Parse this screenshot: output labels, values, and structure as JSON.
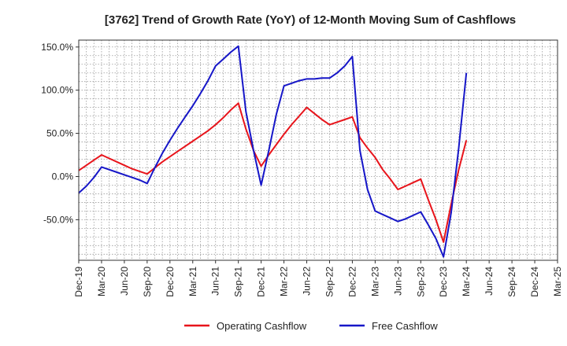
{
  "chart_data": {
    "type": "line",
    "title": "[3762]  Trend of Growth Rate (YoY) of 12-Month Moving Sum of Cashflows",
    "xlabel": "",
    "ylabel": "",
    "ylim": [
      -97,
      158
    ],
    "yticks": [
      150,
      100,
      50,
      0,
      -50
    ],
    "ytick_labels": [
      "150.0%",
      "100.0%",
      "50.0%",
      "0.0%",
      "-50.0%"
    ],
    "x_tick_labels": [
      "Dec-19",
      "Mar-20",
      "Jun-20",
      "Sep-20",
      "Dec-20",
      "Mar-21",
      "Jun-21",
      "Sep-21",
      "Dec-21",
      "Mar-22",
      "Jun-22",
      "Sep-22",
      "Dec-22",
      "Mar-23",
      "Jun-23",
      "Sep-23",
      "Dec-23",
      "Mar-24",
      "Jun-24",
      "Sep-24",
      "Dec-24",
      "Mar-25"
    ],
    "x": [
      "Dec-19",
      "Jan-20",
      "Feb-20",
      "Mar-20",
      "Apr-20",
      "May-20",
      "Jun-20",
      "Jul-20",
      "Aug-20",
      "Sep-20",
      "Oct-20",
      "Nov-20",
      "Dec-20",
      "Jan-21",
      "Feb-21",
      "Mar-21",
      "Apr-21",
      "May-21",
      "Jun-21",
      "Jul-21",
      "Aug-21",
      "Sep-21",
      "Oct-21",
      "Nov-21",
      "Dec-21",
      "Jan-22",
      "Feb-22",
      "Mar-22",
      "Apr-22",
      "May-22",
      "Jun-22",
      "Jul-22",
      "Aug-22",
      "Sep-22",
      "Oct-22",
      "Nov-22",
      "Dec-22",
      "Jan-23",
      "Feb-23",
      "Mar-23",
      "Apr-23",
      "May-23",
      "Jun-23",
      "Jul-23",
      "Aug-23",
      "Sep-23",
      "Oct-23",
      "Nov-23",
      "Dec-23",
      "Jan-24",
      "Feb-24",
      "Mar-24"
    ],
    "series": [
      {
        "name": "Operating Cashflow",
        "color": "#e8141b",
        "values": [
          7,
          13,
          19,
          25,
          21,
          17,
          13,
          9,
          6,
          3,
          10,
          17,
          23,
          29,
          35,
          41,
          47,
          53,
          60,
          68,
          77,
          85,
          55,
          30,
          12,
          25,
          37,
          49,
          60,
          70,
          80,
          73,
          66,
          60,
          63,
          66,
          69,
          45,
          33,
          22,
          8,
          -3,
          -15,
          -11,
          -7,
          -3,
          -27,
          -50,
          -76,
          -32,
          8,
          42
        ]
      },
      {
        "name": "Free Cashflow",
        "color": "#1616c8",
        "values": [
          -19,
          -11,
          -1,
          11,
          8,
          5,
          2,
          -1,
          -4,
          -8,
          10,
          27,
          42,
          56,
          69,
          82,
          96,
          111,
          128,
          136,
          144,
          151,
          75,
          30,
          -10,
          30,
          72,
          105,
          108,
          111,
          113,
          113,
          114,
          114,
          120,
          128,
          139,
          30,
          -15,
          -40,
          -44,
          -48,
          -52,
          -49,
          -45,
          -41,
          -56,
          -72,
          -93,
          -42,
          33,
          120
        ]
      }
    ],
    "grid": true,
    "legend_position": "bottom"
  }
}
